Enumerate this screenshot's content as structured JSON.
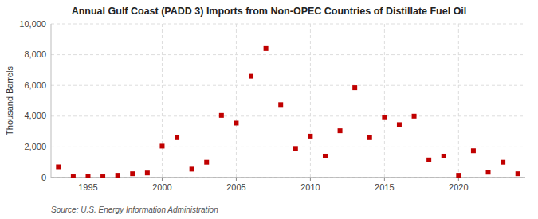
{
  "chart_data": {
    "type": "scatter",
    "title": "Annual Gulf Coast (PADD 3) Imports from Non-OPEC Countries of Distillate Fuel Oil",
    "y_label": "Thousand Barrels",
    "source": "Source: U.S. Energy Information Administration",
    "x": [
      1993,
      1994,
      1995,
      1996,
      1997,
      1998,
      1999,
      2000,
      2001,
      2002,
      2003,
      2004,
      2005,
      2006,
      2007,
      2008,
      2009,
      2010,
      2011,
      2012,
      2013,
      2014,
      2015,
      2016,
      2017,
      2018,
      2019,
      2020,
      2021,
      2022,
      2023,
      2024
    ],
    "values": [
      700,
      50,
      100,
      50,
      150,
      250,
      300,
      2050,
      2600,
      550,
      1000,
      4050,
      3550,
      6600,
      8400,
      4750,
      1900,
      2700,
      1400,
      3050,
      5850,
      2600,
      3900,
      3450,
      4000,
      1150,
      1400,
      150,
      1750,
      350,
      1000,
      250
    ],
    "color": "#c00000",
    "marker": "square",
    "xlim": [
      1992.5,
      2024.5
    ],
    "xticks": [
      1995,
      2000,
      2005,
      2010,
      2015,
      2020
    ],
    "ylim": [
      0,
      10000
    ],
    "yticks": [
      0,
      {
        "value": 2000,
        "label": "2,000"
      },
      {
        "value": 4000,
        "label": "4,000"
      },
      {
        "value": 6000,
        "label": "6,000"
      },
      {
        "value": 8000,
        "label": "8,000"
      },
      {
        "value": 10000,
        "label": "10,000"
      }
    ],
    "grid": true
  }
}
